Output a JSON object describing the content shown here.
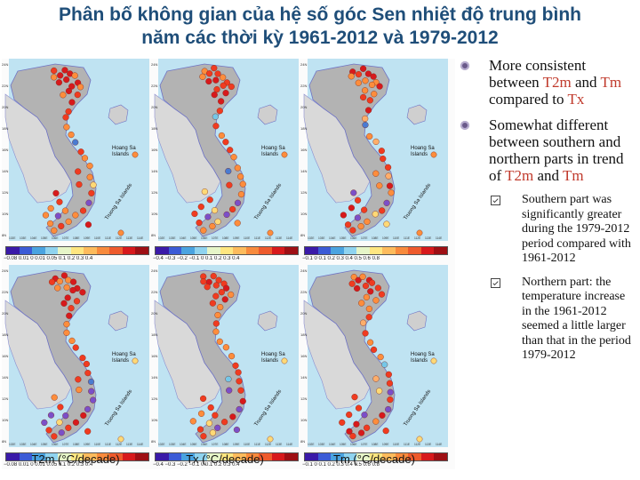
{
  "title": {
    "line1": "Phân bố không gian của hệ số góc Sen nhiệt độ trung bình",
    "line2": "năm các thời kỳ 1961-2012 và 1979-2012"
  },
  "maps": {
    "map_labels": {
      "hoang_sa": [
        "Hoang Sa",
        "Islands"
      ],
      "truong_sa": "Truong Sa Islands",
      "lat_ticks": [
        "24N",
        "22N",
        "20N",
        "18N",
        "16N",
        "14N",
        "12N",
        "10N",
        "8N"
      ],
      "lon_ticks": [
        "102E",
        "103E",
        "104E",
        "105E",
        "106E",
        "107E",
        "108E",
        "109E",
        "110E",
        "111E",
        "112E",
        "113E",
        "114E"
      ]
    },
    "colorbars": [
      "−0.08 0.01 0 0.01 0.05 0.1 0.2 0.3 0.4",
      "−0.4 −0.3 −0.2 −0.1 0 0.1 0.2 0.3 0.4",
      "−0.1 0 0.1 0.2 0.3 0.4 0.5 0.6 0.8"
    ],
    "columns": [
      {
        "unit": "T2m (°C/decade)"
      },
      {
        "unit": "Tx (°C/decade)"
      },
      {
        "unit": "Tm (°C/decade)"
      }
    ],
    "colors": {
      "strong_red": "#d7191c",
      "red": "#f03b20",
      "orange": "#fd8d3c",
      "light_orange": "#fdae6b",
      "yellow": "#fed976",
      "cyan": "#74c7e8",
      "blue": "#4a7bd1",
      "violet": "#7b4fc8"
    }
  },
  "bullets": [
    {
      "pre": "More consistent between ",
      "hl1": "T2m",
      "mid": " and ",
      "hl2": "Tm",
      "post": " compared to ",
      "hl3": "Tx",
      "end": ""
    },
    {
      "pre": "Somewhat different between southern and northern parts in trend of ",
      "hl1": "T2m",
      "mid": " and ",
      "hl2": "Tm",
      "post": "",
      "hl3": "",
      "end": ""
    }
  ],
  "sub_bullets": [
    {
      "text": "Southern part was significantly greater during the 1979-2012 period compared with 1961-2012"
    },
    {
      "text": "Northern part: the temperature increase in the 1961-2012 seemed a little larger than that in the period 1979-2012"
    }
  ]
}
